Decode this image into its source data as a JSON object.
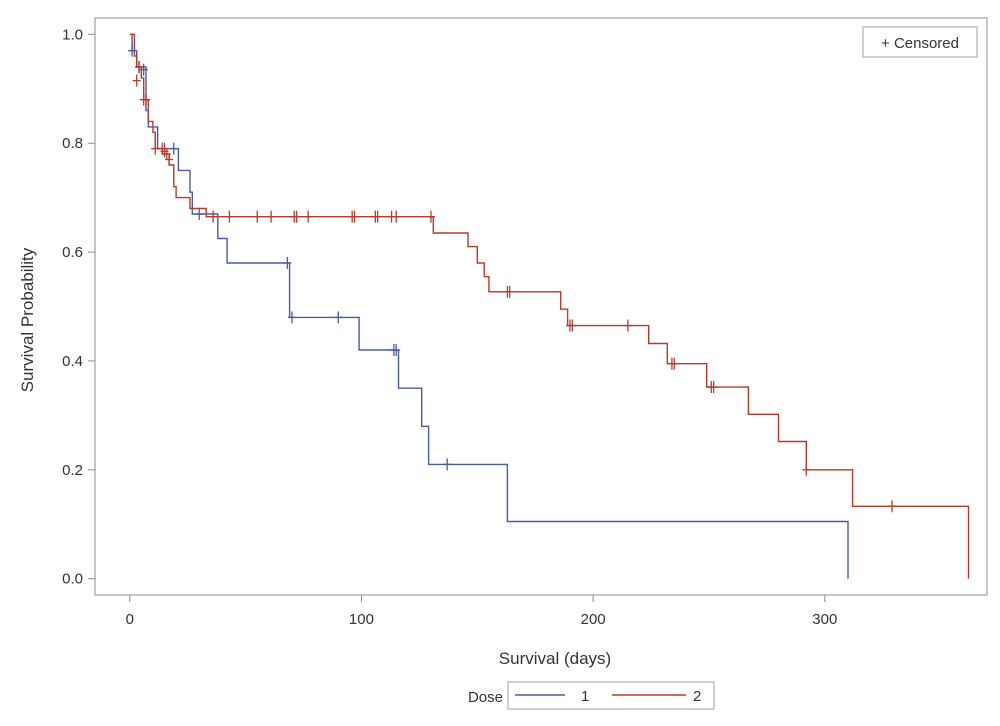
{
  "chart_data": {
    "type": "line",
    "subtype": "kaplan-meier-step",
    "xlabel": "Survival (days)",
    "ylabel": "Survival Probability",
    "xlim": [
      -15,
      370
    ],
    "ylim": [
      -0.03,
      1.03
    ],
    "xticks": [
      0,
      100,
      200,
      300
    ],
    "yticks": [
      0.0,
      0.2,
      0.4,
      0.6,
      0.8,
      1.0
    ],
    "ytick_labels": [
      "0.0",
      "0.2",
      "0.4",
      "0.6",
      "0.8",
      "1.0"
    ],
    "grid": false,
    "censor_legend": "+ Censored",
    "legend": {
      "title": "Dose",
      "placement": "bottom"
    },
    "series": [
      {
        "name": "1",
        "color": "#4a5aa8",
        "steps": [
          [
            0,
            1.0
          ],
          [
            1,
            0.97
          ],
          [
            3,
            0.94
          ],
          [
            7,
            0.86
          ],
          [
            8,
            0.83
          ],
          [
            12,
            0.79
          ],
          [
            21,
            0.75
          ],
          [
            26,
            0.71
          ],
          [
            27,
            0.67
          ],
          [
            38,
            0.625
          ],
          [
            42,
            0.58
          ],
          [
            69,
            0.48
          ],
          [
            99,
            0.42
          ],
          [
            116,
            0.35
          ],
          [
            126,
            0.28
          ],
          [
            129,
            0.21
          ],
          [
            163,
            0.105
          ],
          [
            310,
            0.0
          ]
        ],
        "censored": [
          [
            1,
            0.97
          ],
          [
            4,
            0.94
          ],
          [
            6,
            0.935
          ],
          [
            15,
            0.79
          ],
          [
            19,
            0.79
          ],
          [
            30,
            0.67
          ],
          [
            68,
            0.58
          ],
          [
            70,
            0.48
          ],
          [
            90,
            0.48
          ],
          [
            114,
            0.42
          ],
          [
            115,
            0.42
          ],
          [
            137,
            0.21
          ]
        ]
      },
      {
        "name": "2",
        "color": "#b83a2a",
        "steps": [
          [
            0,
            1.0
          ],
          [
            2,
            0.96
          ],
          [
            3,
            0.94
          ],
          [
            5,
            0.92
          ],
          [
            6,
            0.88
          ],
          [
            8,
            0.84
          ],
          [
            10,
            0.82
          ],
          [
            11,
            0.79
          ],
          [
            14,
            0.78
          ],
          [
            17,
            0.76
          ],
          [
            19,
            0.72
          ],
          [
            20,
            0.7
          ],
          [
            26,
            0.68
          ],
          [
            33,
            0.665
          ],
          [
            131,
            0.635
          ],
          [
            146,
            0.61
          ],
          [
            150,
            0.58
          ],
          [
            153,
            0.555
          ],
          [
            155,
            0.527
          ],
          [
            186,
            0.495
          ],
          [
            189,
            0.465
          ],
          [
            224,
            0.432
          ],
          [
            232,
            0.395
          ],
          [
            249,
            0.352
          ],
          [
            267,
            0.302
          ],
          [
            280,
            0.252
          ],
          [
            292,
            0.2
          ],
          [
            312,
            0.133
          ],
          [
            362,
            0.0
          ]
        ],
        "censored": [
          [
            3,
            0.915
          ],
          [
            4,
            0.94
          ],
          [
            6,
            0.88
          ],
          [
            7,
            0.88
          ],
          [
            11,
            0.79
          ],
          [
            14,
            0.79
          ],
          [
            15,
            0.785
          ],
          [
            16,
            0.78
          ],
          [
            17,
            0.77
          ],
          [
            36,
            0.665
          ],
          [
            43,
            0.665
          ],
          [
            55,
            0.665
          ],
          [
            61,
            0.665
          ],
          [
            71,
            0.665
          ],
          [
            72,
            0.665
          ],
          [
            77,
            0.665
          ],
          [
            96,
            0.665
          ],
          [
            97,
            0.665
          ],
          [
            106,
            0.665
          ],
          [
            107,
            0.665
          ],
          [
            113,
            0.665
          ],
          [
            115,
            0.665
          ],
          [
            130,
            0.665
          ],
          [
            163,
            0.527
          ],
          [
            164,
            0.527
          ],
          [
            190,
            0.465
          ],
          [
            191,
            0.465
          ],
          [
            215,
            0.465
          ],
          [
            234,
            0.395
          ],
          [
            235,
            0.395
          ],
          [
            251,
            0.352
          ],
          [
            252,
            0.352
          ],
          [
            292,
            0.2
          ],
          [
            329,
            0.133
          ]
        ]
      }
    ]
  }
}
